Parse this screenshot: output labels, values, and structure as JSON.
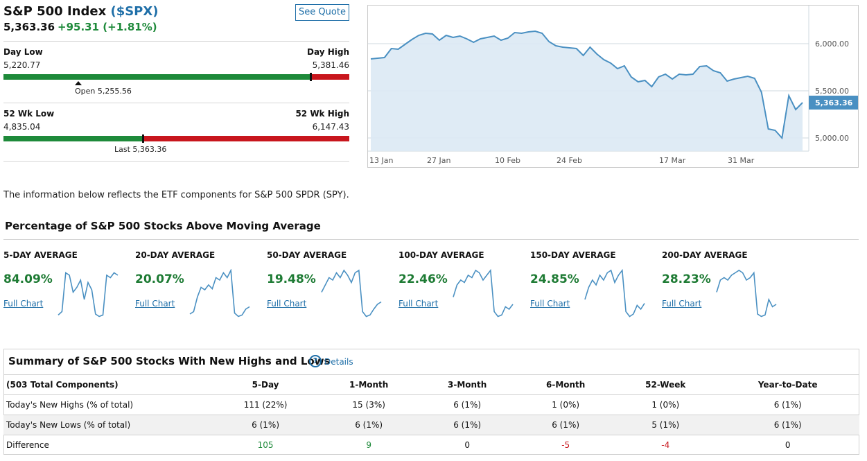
{
  "quote": {
    "name": "S&P 500 Index",
    "symbol": "($SPX)",
    "last": "5,363.36",
    "change": "+95.31 (+1.81%)",
    "see_quote_label": "See Quote"
  },
  "day_range": {
    "low_label": "Day Low",
    "low_value": "5,220.77",
    "high_label": "Day High",
    "high_value": "5,381.46",
    "open_label": "Open 5,255.56",
    "current_fraction": 0.8887,
    "open_fraction": 0.2162
  },
  "week52_range": {
    "low_label": "52 Wk Low",
    "low_value": "4,835.04",
    "high_label": "52 Wk High",
    "high_value": "6,147.43",
    "last_label": "Last 5,363.36",
    "current_fraction": 0.4024
  },
  "price_chart": {
    "y_ticks": [
      "6,000.00",
      "5,500.00",
      "5,000.00"
    ],
    "x_ticks": [
      "13 Jan",
      "27 Jan",
      "10 Feb",
      "24 Feb",
      "17 Mar",
      "31 Mar"
    ],
    "current_label": "5,363.36",
    "line_color": "#4a90c2",
    "fill_color": "#dce9f4"
  },
  "info_text": "The information below reflects the ETF components for S&P 500 SPDR (SPY).",
  "moving_average": {
    "title": "Percentage of S&P 500 Stocks Above Moving Average",
    "items": [
      {
        "label": "5-DAY AVERAGE",
        "value": "84.09%",
        "link": "Full Chart"
      },
      {
        "label": "20-DAY AVERAGE",
        "value": "20.07%",
        "link": "Full Chart"
      },
      {
        "label": "50-DAY AVERAGE",
        "value": "19.48%",
        "link": "Full Chart"
      },
      {
        "label": "100-DAY AVERAGE",
        "value": "22.46%",
        "link": "Full Chart"
      },
      {
        "label": "150-DAY AVERAGE",
        "value": "24.85%",
        "link": "Full Chart"
      },
      {
        "label": "200-DAY AVERAGE",
        "value": "28.23%",
        "link": "Full Chart"
      }
    ]
  },
  "summary": {
    "title": "Summary of S&P 500 Stocks With New Highs and Lows",
    "details_label": "Details",
    "help_icon": "question-circle-icon",
    "header": [
      "(503 Total Components)",
      "5-Day",
      "1-Month",
      "3-Month",
      "6-Month",
      "52-Week",
      "Year-to-Date"
    ],
    "rows": [
      [
        "Today's New Highs (% of total)",
        "111 (22%)",
        "15 (3%)",
        "6 (1%)",
        "1 (0%)",
        "1 (0%)",
        "6 (1%)"
      ],
      [
        "Today's New Lows (% of total)",
        "6 (1%)",
        "6 (1%)",
        "6 (1%)",
        "6 (1%)",
        "5 (1%)",
        "6 (1%)"
      ],
      [
        "Difference",
        "105",
        "9",
        "0",
        "-5",
        "-4",
        "0"
      ]
    ]
  },
  "colors": {
    "positive": "#1e8a3a",
    "negative": "#c8161d",
    "link": "#1f6fa8"
  }
}
